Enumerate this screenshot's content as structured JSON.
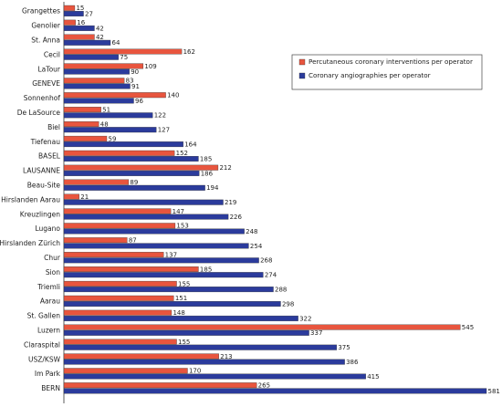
{
  "chart_data": {
    "type": "bar",
    "orientation": "horizontal",
    "categories": [
      "Grangettes",
      "Genolier",
      "St. Anna",
      "Cecil",
      "LaTour",
      "GENEVE",
      "Sonnenhof",
      "De LaSource",
      "Biel",
      "Tiefenau",
      "BASEL",
      "LAUSANNE",
      "Beau-Site",
      "Hirslanden Aarau",
      "Kreuzlingen",
      "Lugano",
      "Hirslanden Zürich",
      "Chur",
      "Sion",
      "Triemli",
      "Aarau",
      "St. Gallen",
      "Luzern",
      "Claraspital",
      "USZ/KSW",
      "Im Park",
      "BERN"
    ],
    "series": [
      {
        "name": "Percutaneous coronary interventions per operator",
        "color": "#e8553e",
        "values": [
          15,
          16,
          42,
          162,
          109,
          83,
          140,
          51,
          48,
          59,
          152,
          212,
          89,
          21,
          147,
          153,
          87,
          137,
          185,
          155,
          151,
          148,
          545,
          155,
          213,
          170,
          265
        ]
      },
      {
        "name": "Coronary angiographies per operator",
        "color": "#2b3b9c",
        "values": [
          27,
          42,
          64,
          75,
          90,
          91,
          96,
          122,
          127,
          164,
          185,
          186,
          194,
          219,
          226,
          248,
          254,
          268,
          274,
          288,
          298,
          322,
          337,
          375,
          386,
          415,
          581
        ]
      }
    ],
    "xlim": [
      0,
      581
    ],
    "grid": false,
    "legend_position": "right"
  }
}
